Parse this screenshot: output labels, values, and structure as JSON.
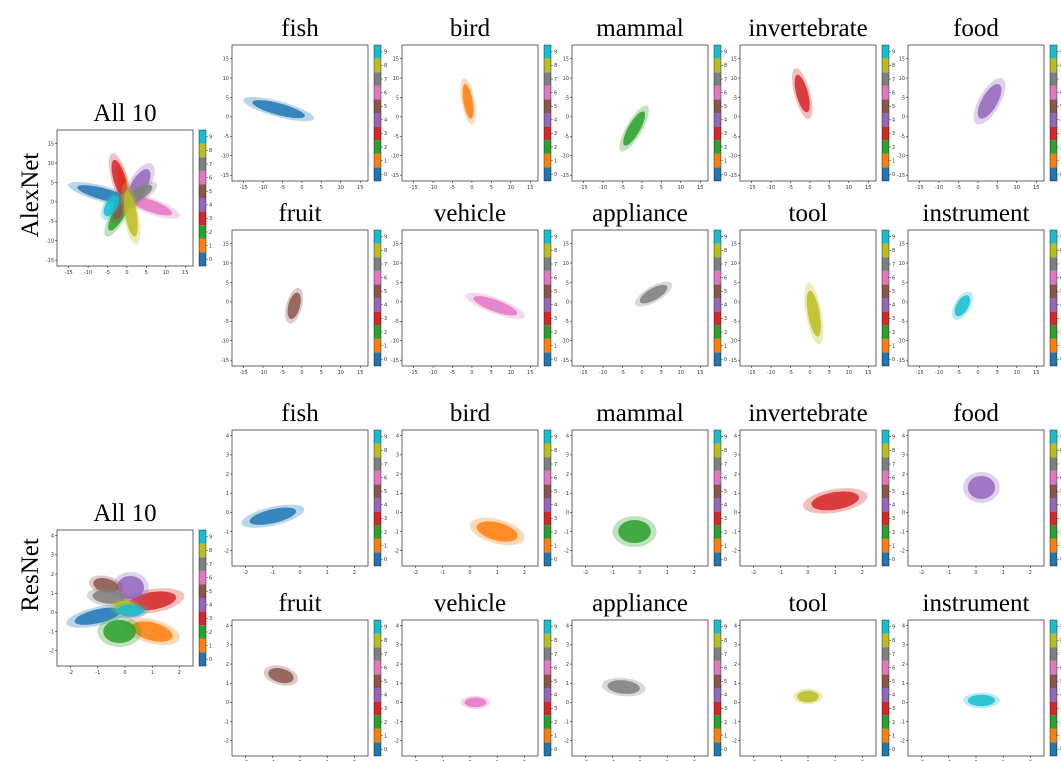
{
  "models": [
    {
      "name": "AlexNet",
      "all_title": "All 10",
      "xlim": [
        -18,
        17
      ],
      "ylim": [
        -16.5,
        18.5
      ],
      "xticks": [
        -15,
        -10,
        -5,
        0,
        5,
        10,
        15
      ],
      "yticks": [
        -15,
        -10,
        -5,
        0,
        5,
        10,
        15
      ],
      "panels": [
        {
          "title": "fish",
          "color": "#1f77b4",
          "center": [
            -6,
            2
          ],
          "rx": 7,
          "ry": 1.5,
          "angle": -15
        },
        {
          "title": "bird",
          "color": "#ff7f0e",
          "center": [
            -1,
            4
          ],
          "rx": 4.5,
          "ry": 1.2,
          "angle": 100
        },
        {
          "title": "mammal",
          "color": "#2ca02c",
          "center": [
            -2,
            -3
          ],
          "rx": 5,
          "ry": 1.5,
          "angle": 60
        },
        {
          "title": "invertebrate",
          "color": "#d62728",
          "center": [
            -2,
            6
          ],
          "rx": 5,
          "ry": 1.5,
          "angle": 105
        },
        {
          "title": "food",
          "color": "#9467bd",
          "center": [
            3,
            4
          ],
          "rx": 5,
          "ry": 2,
          "angle": 60
        },
        {
          "title": "fruit",
          "color": "#8c564b",
          "center": [
            -2,
            -1
          ],
          "rx": 3.5,
          "ry": 1.5,
          "angle": 75
        },
        {
          "title": "vehicle",
          "color": "#e377c2",
          "center": [
            6,
            -1
          ],
          "rx": 6,
          "ry": 1.5,
          "angle": -20
        },
        {
          "title": "appliance",
          "color": "#7f7f7f",
          "center": [
            3,
            2
          ],
          "rx": 4,
          "ry": 1.5,
          "angle": 30
        },
        {
          "title": "tool",
          "color": "#bcbd22",
          "center": [
            1,
            -3
          ],
          "rx": 6,
          "ry": 1.5,
          "angle": -80
        },
        {
          "title": "instrument",
          "color": "#17becf",
          "center": [
            -4,
            -1
          ],
          "rx": 3,
          "ry": 1.5,
          "angle": 60
        }
      ]
    },
    {
      "name": "ResNet",
      "all_title": "All 10",
      "xlim": [
        -2.5,
        2.5
      ],
      "ylim": [
        -2.8,
        4.3
      ],
      "xticks": [
        -2,
        -1,
        0,
        1,
        2
      ],
      "yticks": [
        -2,
        -1,
        0,
        1,
        2,
        3,
        4
      ],
      "panels": [
        {
          "title": "fish",
          "color": "#1f77b4",
          "center": [
            -1,
            -0.2
          ],
          "rx": 0.9,
          "ry": 0.35,
          "angle": 20
        },
        {
          "title": "bird",
          "color": "#ff7f0e",
          "center": [
            1,
            -1
          ],
          "rx": 0.8,
          "ry": 0.45,
          "angle": -25
        },
        {
          "title": "mammal",
          "color": "#2ca02c",
          "center": [
            -0.2,
            -1
          ],
          "rx": 0.6,
          "ry": 0.6,
          "angle": 0
        },
        {
          "title": "invertebrate",
          "color": "#d62728",
          "center": [
            1,
            0.6
          ],
          "rx": 0.9,
          "ry": 0.45,
          "angle": 15
        },
        {
          "title": "food",
          "color": "#9467bd",
          "center": [
            0.2,
            1.3
          ],
          "rx": 0.6,
          "ry": 0.5,
          "angle": 90
        },
        {
          "title": "fruit",
          "color": "#8c564b",
          "center": [
            -0.7,
            1.4
          ],
          "rx": 0.5,
          "ry": 0.35,
          "angle": -30
        },
        {
          "title": "vehicle",
          "color": "#e377c2",
          "center": [
            0.2,
            0
          ],
          "rx": 0.4,
          "ry": 0.25,
          "angle": 0
        },
        {
          "title": "appliance",
          "color": "#7f7f7f",
          "center": [
            -0.6,
            0.8
          ],
          "rx": 0.6,
          "ry": 0.35,
          "angle": -10
        },
        {
          "title": "tool",
          "color": "#bcbd22",
          "center": [
            0,
            0.3
          ],
          "rx": 0.4,
          "ry": 0.3,
          "angle": 0
        },
        {
          "title": "instrument",
          "color": "#17becf",
          "center": [
            0.2,
            0.1
          ],
          "rx": 0.5,
          "ry": 0.3,
          "angle": 0
        }
      ]
    }
  ],
  "colorbar": {
    "ticks": [
      0,
      1,
      2,
      3,
      4,
      5,
      6,
      7,
      8,
      9
    ],
    "colors": [
      "#1f77b4",
      "#ff7f0e",
      "#2ca02c",
      "#d62728",
      "#9467bd",
      "#8c564b",
      "#e377c2",
      "#7f7f7f",
      "#bcbd22",
      "#17becf"
    ]
  }
}
